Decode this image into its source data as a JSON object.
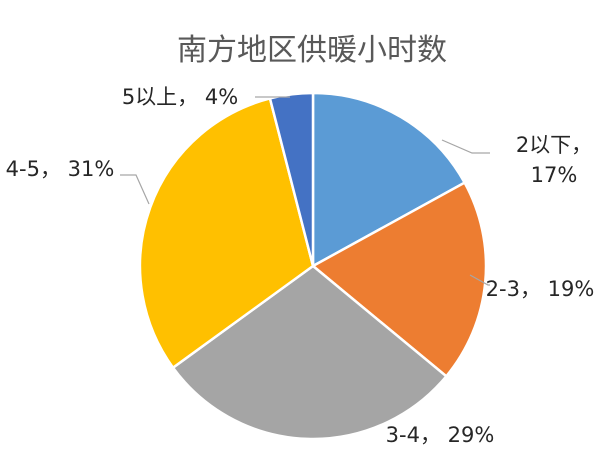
{
  "chart_data": {
    "type": "pie",
    "title": "南方地区供暖小时数",
    "start_angle_deg": 0,
    "direction": "clockwise",
    "slices": [
      {
        "category": "2以下",
        "value": 17,
        "label_lines": [
          "2以下，",
          "17%"
        ],
        "color": "#5b9bd5"
      },
      {
        "category": "2-3",
        "value": 19,
        "label_lines": [
          "2-3，  19%"
        ],
        "color": "#ed7d31"
      },
      {
        "category": "3-4",
        "value": 29,
        "label_lines": [
          "3-4，  29%"
        ],
        "color": "#a5a5a5"
      },
      {
        "category": "4-5",
        "value": 31,
        "label_lines": [
          "4-5，  31%"
        ],
        "color": "#ffc000"
      },
      {
        "category": "5以上",
        "value": 4,
        "label_lines": [
          "5以上，  4%"
        ],
        "color": "#4472c4"
      }
    ]
  }
}
